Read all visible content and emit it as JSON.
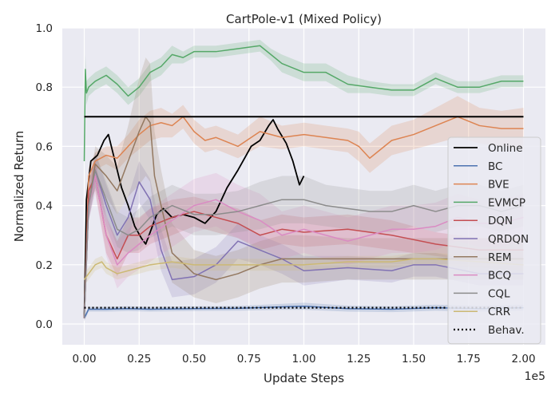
{
  "chart_data": {
    "type": "line",
    "title": "CartPole-v1 (Mixed Policy)",
    "xlabel": "Update Steps",
    "ylabel": "Normalized Return",
    "x_multiplier_label": "1e5",
    "xlim": [
      -0.1,
      2.1
    ],
    "ylim": [
      -0.07,
      1.0
    ],
    "x_ticks": [
      0.0,
      0.25,
      0.5,
      0.75,
      1.0,
      1.25,
      1.5,
      1.75,
      2.0
    ],
    "x_tick_labels": [
      "0.00",
      "0.25",
      "0.50",
      "0.75",
      "1.00",
      "1.25",
      "1.50",
      "1.75",
      "2.00"
    ],
    "y_ticks": [
      0.0,
      0.2,
      0.4,
      0.6,
      0.8,
      1.0
    ],
    "y_tick_labels": [
      "0.0",
      "0.2",
      "0.4",
      "0.6",
      "0.8",
      "1.0"
    ],
    "grid": true,
    "legend_position": "right",
    "colors": {
      "plot_background": "#eaeaf2",
      "grid": "#ffffff"
    },
    "series": [
      {
        "name": "Online",
        "color": "#000000",
        "style": "solid",
        "width": 1.8,
        "x": [
          0.0,
          0.01,
          0.03,
          0.06,
          0.09,
          0.11,
          0.14,
          0.17,
          0.2,
          0.23,
          0.26,
          0.28,
          0.3,
          0.33,
          0.36,
          0.4,
          0.45,
          0.5,
          0.55,
          0.6,
          0.65,
          0.7,
          0.73,
          0.76,
          0.8,
          0.84,
          0.86,
          0.88,
          0.92,
          0.95,
          0.98,
          1.0
        ],
        "y": [
          0.02,
          0.42,
          0.55,
          0.57,
          0.62,
          0.64,
          0.55,
          0.46,
          0.4,
          0.33,
          0.29,
          0.27,
          0.31,
          0.37,
          0.39,
          0.36,
          0.37,
          0.36,
          0.34,
          0.38,
          0.46,
          0.52,
          0.56,
          0.6,
          0.62,
          0.67,
          0.69,
          0.66,
          0.61,
          0.55,
          0.47,
          0.5
        ]
      },
      {
        "name": "BC",
        "color": "#4c72b0",
        "style": "solid",
        "width": 1.5,
        "x": [
          0.0,
          0.02,
          0.05,
          0.1,
          0.2,
          0.3,
          0.5,
          0.7,
          0.9,
          1.0,
          1.2,
          1.4,
          1.6,
          1.8,
          2.0
        ],
        "y": [
          0.02,
          0.05,
          0.05,
          0.05,
          0.052,
          0.05,
          0.052,
          0.053,
          0.058,
          0.06,
          0.052,
          0.05,
          0.055,
          0.052,
          0.055
        ],
        "band": [
          0.01,
          0.008,
          0.008,
          0.008,
          0.008,
          0.008,
          0.008,
          0.008,
          0.01,
          0.012,
          0.01,
          0.01,
          0.01,
          0.01,
          0.01
        ]
      },
      {
        "name": "BVE",
        "color": "#dd8452",
        "style": "solid",
        "width": 1.5,
        "x": [
          0.0,
          0.02,
          0.05,
          0.1,
          0.15,
          0.2,
          0.25,
          0.3,
          0.35,
          0.4,
          0.45,
          0.5,
          0.55,
          0.6,
          0.7,
          0.8,
          0.9,
          1.0,
          1.1,
          1.2,
          1.25,
          1.3,
          1.35,
          1.4,
          1.5,
          1.6,
          1.7,
          1.8,
          1.9,
          2.0
        ],
        "y": [
          0.02,
          0.5,
          0.55,
          0.57,
          0.56,
          0.6,
          0.64,
          0.67,
          0.68,
          0.67,
          0.7,
          0.65,
          0.62,
          0.63,
          0.6,
          0.65,
          0.63,
          0.64,
          0.63,
          0.62,
          0.6,
          0.56,
          0.59,
          0.62,
          0.64,
          0.67,
          0.7,
          0.67,
          0.66,
          0.66
        ],
        "band": [
          0.01,
          0.03,
          0.03,
          0.03,
          0.04,
          0.04,
          0.05,
          0.05,
          0.05,
          0.04,
          0.04,
          0.04,
          0.04,
          0.04,
          0.04,
          0.05,
          0.04,
          0.04,
          0.04,
          0.04,
          0.05,
          0.05,
          0.05,
          0.05,
          0.05,
          0.06,
          0.07,
          0.06,
          0.06,
          0.07
        ]
      },
      {
        "name": "EVMCP",
        "color": "#55a868",
        "style": "solid",
        "width": 1.5,
        "x": [
          0.0,
          0.005,
          0.01,
          0.02,
          0.05,
          0.1,
          0.15,
          0.2,
          0.25,
          0.3,
          0.35,
          0.4,
          0.45,
          0.5,
          0.6,
          0.7,
          0.8,
          0.85,
          0.9,
          1.0,
          1.1,
          1.2,
          1.3,
          1.4,
          1.5,
          1.6,
          1.7,
          1.8,
          1.9,
          2.0
        ],
        "y": [
          0.55,
          0.86,
          0.78,
          0.8,
          0.82,
          0.84,
          0.81,
          0.77,
          0.8,
          0.85,
          0.87,
          0.91,
          0.9,
          0.92,
          0.92,
          0.93,
          0.94,
          0.91,
          0.88,
          0.85,
          0.85,
          0.81,
          0.8,
          0.79,
          0.79,
          0.83,
          0.8,
          0.8,
          0.82,
          0.82
        ],
        "band": [
          0.05,
          0.05,
          0.04,
          0.03,
          0.03,
          0.03,
          0.03,
          0.03,
          0.03,
          0.03,
          0.03,
          0.03,
          0.02,
          0.02,
          0.02,
          0.02,
          0.02,
          0.02,
          0.03,
          0.03,
          0.03,
          0.03,
          0.02,
          0.02,
          0.02,
          0.02,
          0.02,
          0.02,
          0.02,
          0.02
        ]
      },
      {
        "name": "DQN",
        "color": "#c44e52",
        "style": "solid",
        "width": 1.5,
        "x": [
          0.0,
          0.02,
          0.05,
          0.1,
          0.15,
          0.2,
          0.25,
          0.3,
          0.4,
          0.5,
          0.6,
          0.7,
          0.8,
          0.9,
          1.0,
          1.2,
          1.4,
          1.6,
          1.8,
          2.0
        ],
        "y": [
          0.02,
          0.45,
          0.5,
          0.3,
          0.22,
          0.3,
          0.3,
          0.33,
          0.36,
          0.38,
          0.36,
          0.34,
          0.3,
          0.32,
          0.31,
          0.32,
          0.3,
          0.27,
          0.25,
          0.25
        ],
        "band": [
          0.01,
          0.04,
          0.05,
          0.06,
          0.06,
          0.06,
          0.06,
          0.06,
          0.06,
          0.05,
          0.05,
          0.05,
          0.05,
          0.05,
          0.05,
          0.05,
          0.05,
          0.04,
          0.04,
          0.04
        ]
      },
      {
        "name": "QRDQN",
        "color": "#8172b3",
        "style": "solid",
        "width": 1.5,
        "x": [
          0.0,
          0.02,
          0.05,
          0.1,
          0.15,
          0.2,
          0.25,
          0.3,
          0.35,
          0.4,
          0.5,
          0.6,
          0.7,
          0.8,
          0.9,
          1.0,
          1.2,
          1.4,
          1.5,
          1.6,
          1.8,
          2.0
        ],
        "y": [
          0.02,
          0.4,
          0.52,
          0.4,
          0.3,
          0.36,
          0.48,
          0.42,
          0.25,
          0.15,
          0.16,
          0.2,
          0.28,
          0.25,
          0.22,
          0.18,
          0.19,
          0.18,
          0.2,
          0.2,
          0.17,
          0.17
        ],
        "band": [
          0.01,
          0.05,
          0.06,
          0.07,
          0.07,
          0.07,
          0.07,
          0.07,
          0.07,
          0.06,
          0.06,
          0.06,
          0.06,
          0.05,
          0.05,
          0.05,
          0.04,
          0.04,
          0.04,
          0.04,
          0.04,
          0.04
        ]
      },
      {
        "name": "REM",
        "color": "#937860",
        "style": "solid",
        "width": 1.5,
        "x": [
          0.0,
          0.02,
          0.05,
          0.1,
          0.15,
          0.2,
          0.25,
          0.28,
          0.3,
          0.32,
          0.35,
          0.4,
          0.5,
          0.6,
          0.7,
          0.8,
          0.9,
          1.0,
          1.2,
          1.4,
          1.6,
          1.8,
          2.0
        ],
        "y": [
          0.02,
          0.4,
          0.54,
          0.5,
          0.45,
          0.55,
          0.65,
          0.7,
          0.68,
          0.5,
          0.4,
          0.24,
          0.17,
          0.15,
          0.17,
          0.2,
          0.22,
          0.22,
          0.22,
          0.22,
          0.22,
          0.22,
          0.22
        ],
        "band": [
          0.01,
          0.05,
          0.06,
          0.07,
          0.08,
          0.12,
          0.18,
          0.2,
          0.2,
          0.15,
          0.12,
          0.1,
          0.08,
          0.08,
          0.08,
          0.08,
          0.08,
          0.08,
          0.07,
          0.07,
          0.07,
          0.07,
          0.07
        ]
      },
      {
        "name": "BCQ",
        "color": "#da8bc3",
        "style": "solid",
        "width": 1.5,
        "x": [
          0.0,
          0.02,
          0.05,
          0.1,
          0.15,
          0.2,
          0.3,
          0.4,
          0.5,
          0.6,
          0.7,
          0.8,
          0.9,
          1.0,
          1.1,
          1.2,
          1.3,
          1.4,
          1.5,
          1.6,
          1.7,
          1.8,
          1.9,
          2.0
        ],
        "y": [
          0.02,
          0.4,
          0.5,
          0.3,
          0.2,
          0.24,
          0.3,
          0.35,
          0.4,
          0.42,
          0.38,
          0.35,
          0.3,
          0.32,
          0.3,
          0.28,
          0.3,
          0.32,
          0.32,
          0.33,
          0.36,
          0.34,
          0.34,
          0.36
        ],
        "band": [
          0.01,
          0.05,
          0.06,
          0.07,
          0.08,
          0.08,
          0.09,
          0.09,
          0.09,
          0.09,
          0.09,
          0.09,
          0.08,
          0.08,
          0.08,
          0.08,
          0.08,
          0.08,
          0.08,
          0.08,
          0.08,
          0.08,
          0.08,
          0.08
        ]
      },
      {
        "name": "CQL",
        "color": "#8c8c8c",
        "style": "solid",
        "width": 1.5,
        "x": [
          0.0,
          0.02,
          0.05,
          0.1,
          0.15,
          0.2,
          0.25,
          0.3,
          0.35,
          0.4,
          0.5,
          0.6,
          0.7,
          0.8,
          0.9,
          1.0,
          1.1,
          1.2,
          1.3,
          1.4,
          1.5,
          1.6,
          1.7,
          1.8,
          1.9,
          2.0
        ],
        "y": [
          0.02,
          0.4,
          0.52,
          0.42,
          0.32,
          0.3,
          0.32,
          0.36,
          0.38,
          0.4,
          0.37,
          0.37,
          0.38,
          0.4,
          0.42,
          0.42,
          0.4,
          0.39,
          0.38,
          0.38,
          0.4,
          0.38,
          0.4,
          0.4,
          0.38,
          0.4
        ],
        "band": [
          0.01,
          0.05,
          0.06,
          0.06,
          0.06,
          0.06,
          0.07,
          0.07,
          0.07,
          0.07,
          0.07,
          0.07,
          0.07,
          0.08,
          0.08,
          0.08,
          0.07,
          0.07,
          0.07,
          0.07,
          0.07,
          0.07,
          0.07,
          0.07,
          0.07,
          0.07
        ]
      },
      {
        "name": "CRR",
        "color": "#ccb974",
        "style": "solid",
        "width": 1.5,
        "x": [
          0.0,
          0.02,
          0.05,
          0.08,
          0.1,
          0.15,
          0.2,
          0.3,
          0.4,
          0.5,
          0.6,
          0.7,
          0.8,
          0.9,
          1.0,
          1.2,
          1.4,
          1.5,
          1.6,
          1.8,
          2.0
        ],
        "y": [
          0.15,
          0.17,
          0.2,
          0.21,
          0.19,
          0.17,
          0.18,
          0.2,
          0.21,
          0.2,
          0.2,
          0.2,
          0.2,
          0.2,
          0.2,
          0.21,
          0.21,
          0.22,
          0.22,
          0.21,
          0.2
        ],
        "band": [
          0.02,
          0.02,
          0.02,
          0.02,
          0.02,
          0.02,
          0.02,
          0.02,
          0.02,
          0.02,
          0.02,
          0.02,
          0.02,
          0.02,
          0.02,
          0.02,
          0.02,
          0.02,
          0.02,
          0.02,
          0.02
        ]
      },
      {
        "name": "Behav.",
        "color": "#000000",
        "style": "dotted",
        "width": 2.2,
        "x": [
          0.0,
          2.0
        ],
        "y": [
          0.055,
          0.055
        ]
      }
    ],
    "reference_line": {
      "y": 0.7,
      "x_start": 0.0,
      "x_end": 2.0,
      "color": "#000000"
    }
  }
}
